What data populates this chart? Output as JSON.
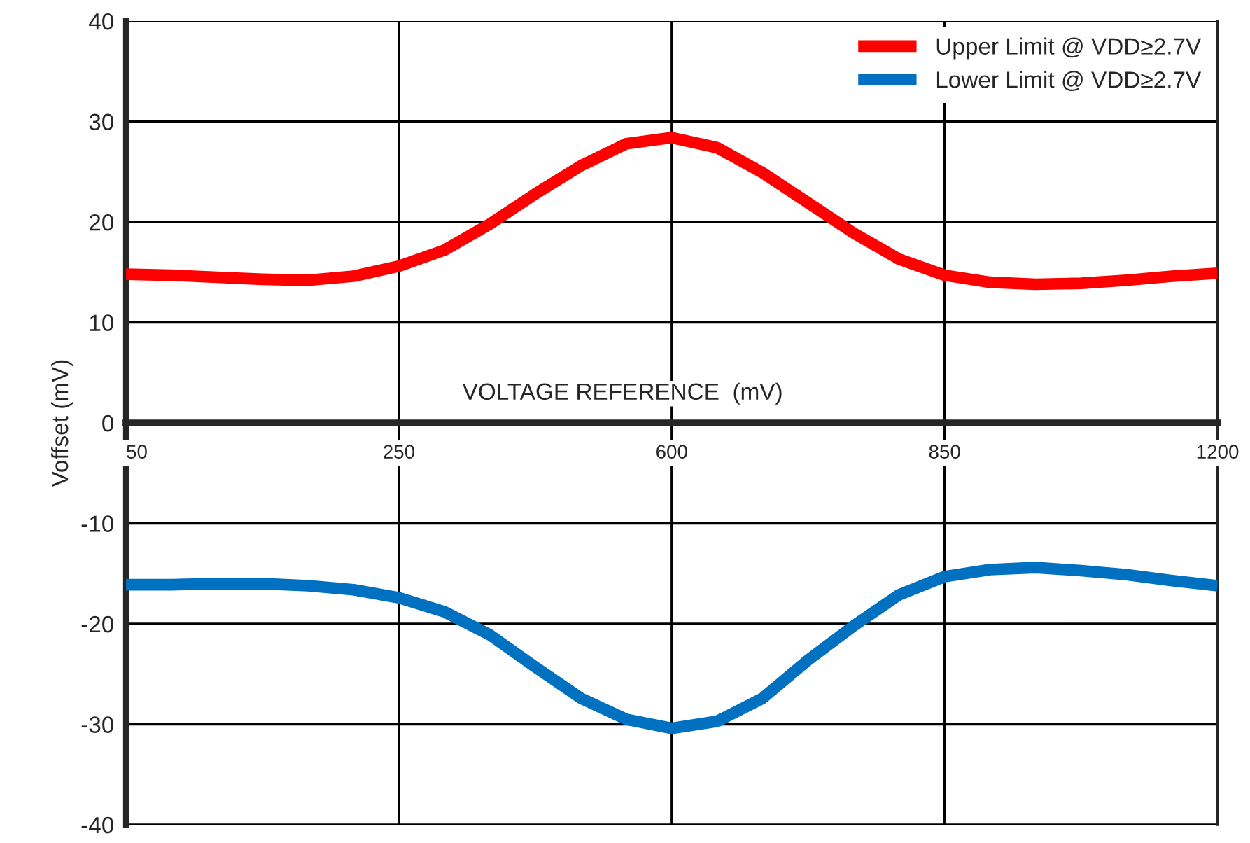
{
  "chart_data": {
    "type": "line",
    "xlabel": "VOLTAGE REFERENCE  (mV)",
    "ylabel": "Voffset (mV)",
    "categories": [
      "50",
      null,
      null,
      null,
      null,
      null,
      "250",
      null,
      null,
      null,
      null,
      null,
      "600",
      null,
      null,
      null,
      null,
      null,
      "850",
      null,
      null,
      null,
      null,
      null,
      "1200"
    ],
    "series": [
      {
        "name": "Upper Limit @ VDD≥2.7V",
        "color": "#ff0000",
        "values": [
          14.8,
          14.7,
          14.5,
          14.3,
          14.2,
          14.6,
          15.6,
          17.2,
          19.8,
          22.8,
          25.6,
          27.8,
          28.4,
          27.4,
          24.9,
          21.9,
          18.9,
          16.3,
          14.7,
          14.0,
          13.8,
          13.9,
          14.2,
          14.6,
          14.9
        ]
      },
      {
        "name": "Lower Limit @ VDD≥2.7V",
        "color": "#0070c0",
        "values": [
          -16.1,
          -16.1,
          -16.0,
          -16.0,
          -16.2,
          -16.6,
          -17.4,
          -18.8,
          -21.1,
          -24.3,
          -27.4,
          -29.5,
          -30.4,
          -29.7,
          -27.4,
          -23.6,
          -20.2,
          -17.1,
          -15.3,
          -14.6,
          -14.4,
          -14.7,
          -15.1,
          -15.7,
          -16.2
        ]
      }
    ],
    "ylim": [
      -40,
      40
    ],
    "yticks": [
      -40,
      -30,
      -20,
      -10,
      0,
      10,
      20,
      30,
      40
    ],
    "grid": true,
    "legend": "top right",
    "marker": "none",
    "line_style": "solid"
  }
}
